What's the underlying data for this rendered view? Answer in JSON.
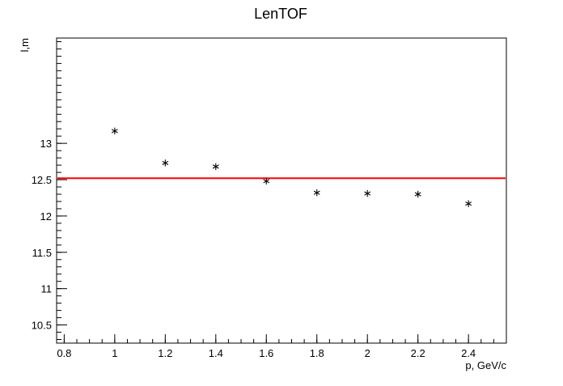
{
  "chart_data": {
    "type": "scatter",
    "title": "LenTOF",
    "xlabel": "p, GeV/c",
    "ylabel": "l,m",
    "xlim": [
      0.77,
      2.55
    ],
    "ylim": [
      10.25,
      14.45
    ],
    "x_ticks": [
      {
        "value": 0.8,
        "label": "0.8"
      },
      {
        "value": 1.0,
        "label": "1"
      },
      {
        "value": 1.2,
        "label": "1.2"
      },
      {
        "value": 1.4,
        "label": "1.4"
      },
      {
        "value": 1.6,
        "label": "1.6"
      },
      {
        "value": 1.8,
        "label": "1.8"
      },
      {
        "value": 2.0,
        "label": "2"
      },
      {
        "value": 2.2,
        "label": "2.2"
      },
      {
        "value": 2.4,
        "label": "2.4"
      }
    ],
    "y_ticks": [
      {
        "value": 10.5,
        "label": "10.5"
      },
      {
        "value": 11.0,
        "label": "11"
      },
      {
        "value": 11.5,
        "label": "11.5"
      },
      {
        "value": 12.0,
        "label": "12"
      },
      {
        "value": 12.5,
        "label": "12.5"
      },
      {
        "value": 13.0,
        "label": "13"
      }
    ],
    "x_minor_step": 0.05,
    "y_minor_step": 0.1,
    "series": [
      {
        "marker": "asterisk",
        "color": "#000000",
        "x": [
          1.0,
          1.2,
          1.4,
          1.6,
          1.8,
          2.0,
          2.2,
          2.4
        ],
        "y": [
          13.17,
          12.73,
          12.68,
          12.48,
          12.32,
          12.31,
          12.3,
          12.17
        ]
      }
    ],
    "fit_line": {
      "type": "constant",
      "y": 12.52,
      "color": "#ff0000"
    },
    "grid": false,
    "legend": "none"
  }
}
